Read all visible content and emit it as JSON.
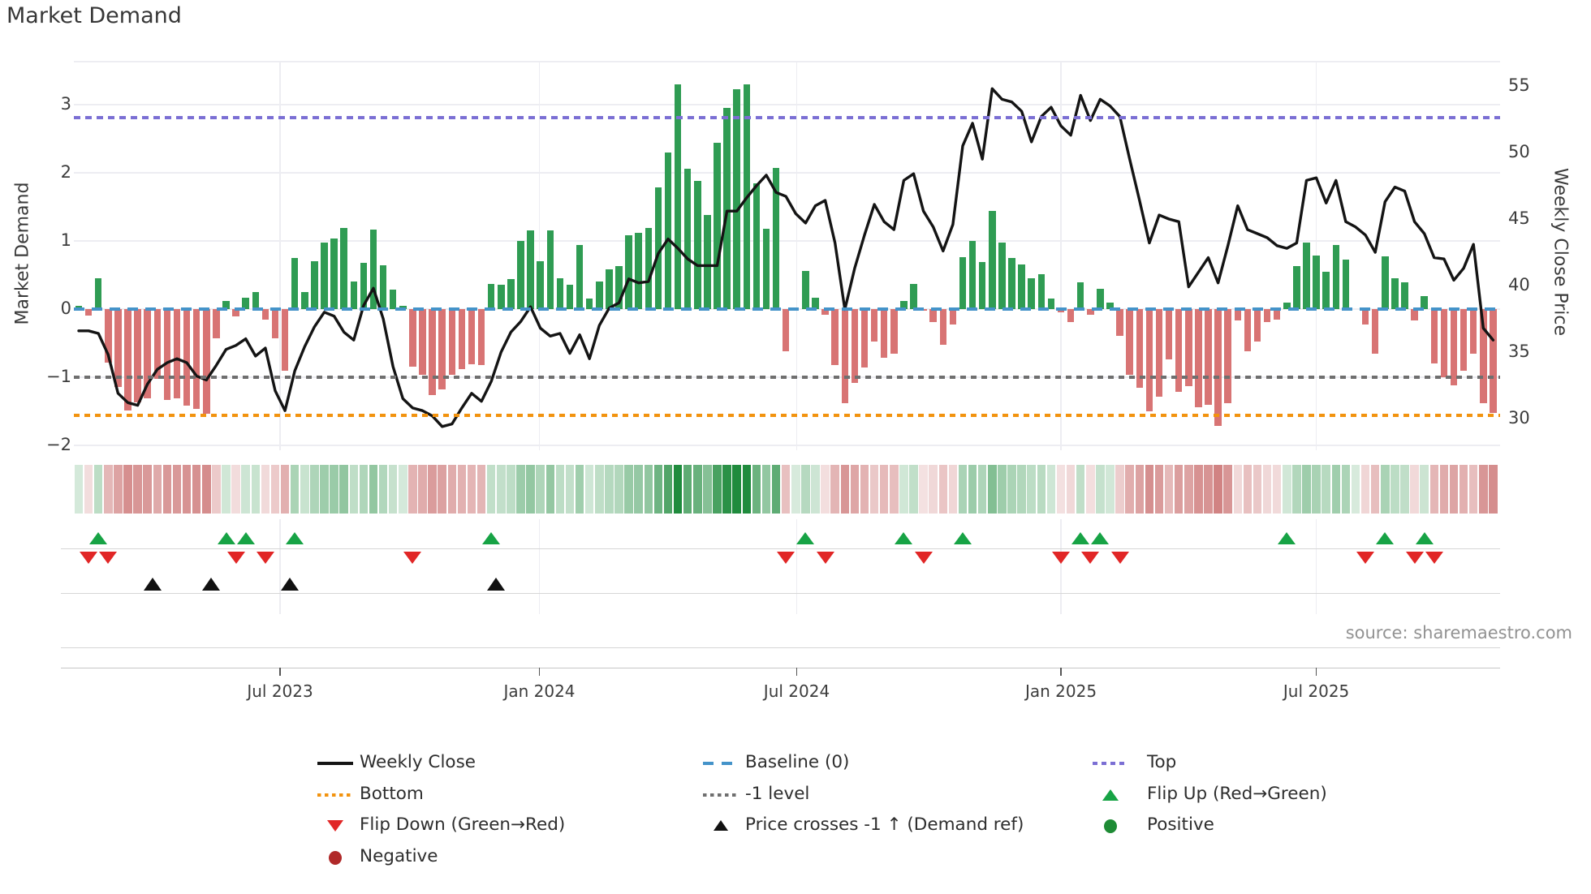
{
  "title": "Market Demand",
  "source": "source: sharemaestro.com",
  "left_axis": {
    "title": "Market Demand",
    "tick_labels": [
      "3",
      "2",
      "1",
      "0",
      "−1",
      "−2"
    ],
    "tick_values": [
      3,
      2,
      1,
      0,
      -1,
      -2
    ]
  },
  "right_axis": {
    "title": "Weekly Close Price",
    "tick_labels": [
      "55",
      "50",
      "45",
      "40",
      "35",
      "30"
    ],
    "tick_values": [
      55,
      50,
      45,
      40,
      35,
      30
    ]
  },
  "x_axis": {
    "tick_labels": [
      "Jul 2023",
      "Jan 2024",
      "Jul 2024",
      "Jan 2025",
      "Jul 2025"
    ],
    "tick_weeks": [
      20.5,
      46.9,
      73.1,
      100.0,
      126.0
    ]
  },
  "colors": {
    "bar_positive": "#2f9c53",
    "bar_negative": "#d87474",
    "price_line": "#141414",
    "baseline": "#4493c9",
    "top_line": "#7b6fd4",
    "bottom_line": "#f2930f",
    "minus1_line": "#6f6f6f",
    "flip_up": "#17a345",
    "flip_down": "#e12626",
    "price_cross": "#111111",
    "positive_dot": "#1e8b35",
    "negative_dot": "#b02929",
    "heat_green": [
      31,
      139,
      61
    ],
    "heat_red": [
      196,
      96,
      96
    ]
  },
  "legend": {
    "items": [
      {
        "label": "Weekly Close",
        "marker": "line-solid-black",
        "col": 0,
        "row": 0
      },
      {
        "label": "Bottom",
        "marker": "line-dotted-orange",
        "col": 0,
        "row": 1
      },
      {
        "label": "Flip Down (Green→Red)",
        "marker": "triangle-down-red",
        "col": 0,
        "row": 2
      },
      {
        "label": "Negative",
        "marker": "circle-darkred",
        "col": 0,
        "row": 3
      },
      {
        "label": "Baseline (0)",
        "marker": "line-dashed-blue",
        "col": 1,
        "row": 0
      },
      {
        "label": "-1 level",
        "marker": "line-dotted-gray",
        "col": 1,
        "row": 1
      },
      {
        "label": "Price crosses -1 ↑ (Demand ref)",
        "marker": "triangle-up-black",
        "col": 1,
        "row": 2
      },
      {
        "label": "Top",
        "marker": "line-dotted-purple",
        "col": 2,
        "row": 0
      },
      {
        "label": "Flip Up (Red→Green)",
        "marker": "triangle-up-green",
        "col": 2,
        "row": 1
      },
      {
        "label": "Positive",
        "marker": "circle-green",
        "col": 2,
        "row": 2
      }
    ]
  },
  "chart_data": {
    "type": "bar",
    "title": "Market Demand",
    "xlabel": "",
    "ylabel_left": "Market Demand",
    "ylabel_right": "Weekly Close Price",
    "left_ylim": [
      -2.2,
      3.65
    ],
    "right_ylim": [
      28.5,
      56.5
    ],
    "levels": {
      "top": 2.81,
      "baseline": 0,
      "minus1": -1,
      "bottom": -1.56
    },
    "heatmap_source": "demand values (green positive, red negative)",
    "series": [
      {
        "name": "Market Demand",
        "type": "bar",
        "axis": "left",
        "values": [
          0.05,
          -0.1,
          0.45,
          -0.78,
          -1.14,
          -1.49,
          -1.37,
          -1.31,
          -1.02,
          -1.33,
          -1.31,
          -1.42,
          -1.46,
          -1.54,
          -0.43,
          0.12,
          -0.11,
          0.17,
          0.25,
          -0.15,
          -0.43,
          -0.9,
          0.75,
          0.25,
          0.7,
          0.98,
          1.04,
          1.19,
          0.41,
          0.68,
          1.17,
          0.64,
          0.29,
          0.05,
          -0.85,
          -0.97,
          -1.26,
          -1.18,
          -0.97,
          -0.88,
          -0.81,
          -0.82,
          0.37,
          0.36,
          0.44,
          1.0,
          1.16,
          0.7,
          1.15,
          0.45,
          0.36,
          0.94,
          0.15,
          0.41,
          0.58,
          0.63,
          1.08,
          1.12,
          1.19,
          1.79,
          2.3,
          3.3,
          2.06,
          1.88,
          1.38,
          2.44,
          2.95,
          3.23,
          3.3,
          1.84,
          1.18,
          2.07,
          -0.62,
          0.0,
          0.56,
          0.17,
          -0.08,
          -0.82,
          -1.38,
          -1.08,
          -0.86,
          -0.48,
          -0.72,
          -0.66,
          0.12,
          0.37,
          -0.02,
          -0.19,
          -0.52,
          -0.23,
          0.76,
          1.0,
          0.69,
          1.44,
          0.98,
          0.75,
          0.65,
          0.45,
          0.51,
          0.15,
          -0.05,
          -0.19,
          0.39,
          -0.08,
          0.3,
          0.1,
          -0.39,
          -0.96,
          -1.16,
          -1.5,
          -1.28,
          -0.74,
          -1.22,
          -1.13,
          -1.44,
          -1.4,
          -1.71,
          -1.38,
          -0.17,
          -0.62,
          -0.48,
          -0.19,
          -0.15,
          0.1,
          0.63,
          0.98,
          0.79,
          0.55,
          0.94,
          0.73,
          0.0,
          -0.23,
          -0.66,
          0.77,
          0.45,
          0.39,
          -0.17,
          0.19,
          -0.8,
          -1.0,
          -1.12,
          -0.9,
          -0.66,
          -1.38,
          -1.52
        ]
      },
      {
        "name": "Weekly Close",
        "type": "line",
        "axis": "right",
        "values": [
          36.6,
          36.6,
          36.4,
          34.8,
          31.9,
          31.2,
          31.0,
          32.6,
          33.7,
          34.2,
          34.5,
          34.2,
          33.2,
          32.9,
          34.0,
          35.2,
          35.5,
          36.0,
          34.7,
          35.3,
          32.1,
          30.6,
          33.6,
          35.4,
          36.9,
          38.0,
          37.7,
          36.5,
          35.9,
          38.5,
          39.8,
          37.5,
          33.9,
          31.5,
          30.8,
          30.6,
          30.2,
          29.4,
          29.6,
          30.8,
          31.9,
          31.3,
          32.8,
          35.0,
          36.5,
          37.3,
          38.4,
          36.8,
          36.2,
          36.4,
          34.9,
          36.3,
          34.5,
          37.0,
          38.3,
          38.7,
          40.5,
          40.2,
          40.3,
          42.4,
          43.5,
          42.8,
          42.0,
          41.5,
          41.5,
          41.5,
          45.6,
          45.6,
          46.6,
          47.5,
          48.3,
          47.0,
          46.7,
          45.4,
          44.7,
          46.0,
          46.4,
          43.2,
          38.2,
          41.3,
          43.8,
          46.1,
          44.8,
          44.2,
          47.9,
          48.4,
          45.6,
          44.4,
          42.6,
          44.6,
          50.5,
          52.2,
          49.5,
          54.8,
          54.0,
          53.8,
          53.1,
          50.8,
          52.7,
          53.4,
          52.0,
          51.3,
          54.3,
          52.4,
          54.0,
          53.5,
          52.7,
          49.5,
          46.4,
          43.2,
          45.3,
          45.0,
          44.8,
          39.9,
          41.0,
          42.1,
          40.2,
          43.0,
          46.0,
          44.2,
          43.9,
          43.6,
          43.0,
          42.8,
          43.2,
          47.9,
          48.1,
          46.2,
          47.9,
          44.8,
          44.4,
          43.8,
          42.5,
          46.3,
          47.4,
          47.1,
          44.8,
          43.9,
          42.1,
          42.0,
          40.4,
          41.3,
          43.1,
          36.8,
          35.9
        ]
      }
    ],
    "markers": {
      "flip_up_weeks": [
        2,
        15,
        17,
        22,
        42,
        74,
        84,
        90,
        102,
        104,
        123,
        133,
        137
      ],
      "flip_down_weeks": [
        1,
        3,
        16,
        19,
        34,
        72,
        76,
        86,
        100,
        103,
        106,
        131,
        136,
        138
      ],
      "price_cross_weeks": [
        7.5,
        13.5,
        21.5,
        42.5
      ]
    }
  }
}
